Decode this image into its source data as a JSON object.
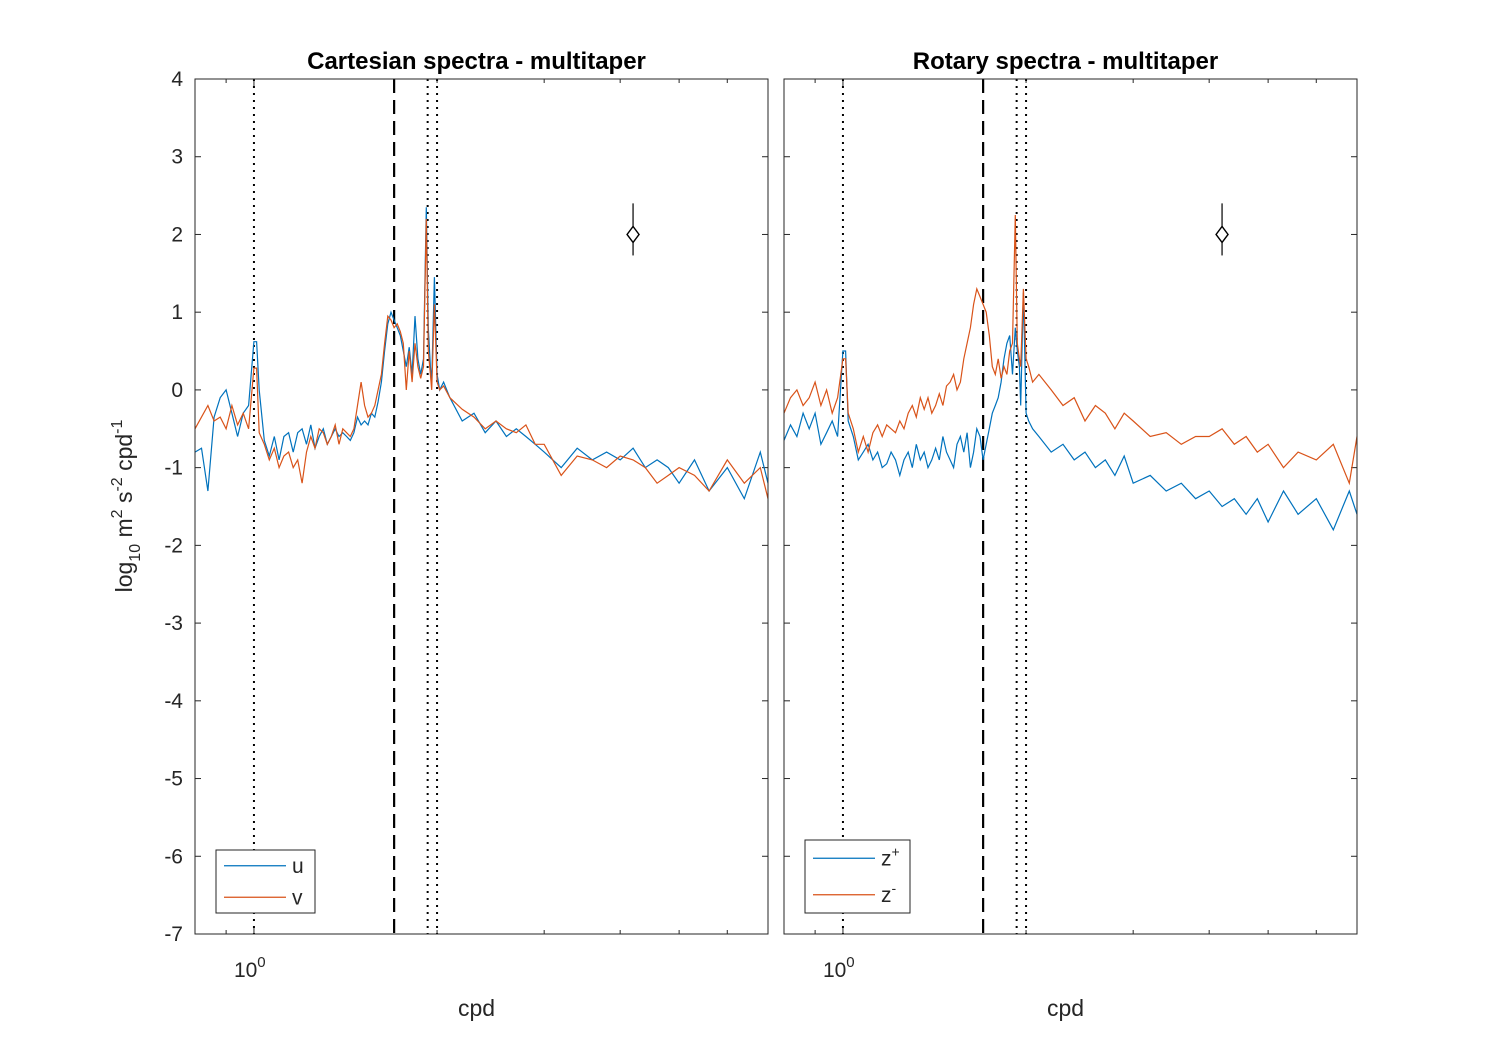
{
  "chart_data": [
    {
      "type": "line",
      "title": "Cartesian spectra - multitaper",
      "xlabel": "cpd",
      "ylabel": {
        "base": "log",
        "sub1": "10",
        "mid1": " m",
        "sup1": "2",
        "mid2": " s",
        "sup2": "-2",
        "mid3": " cpd",
        "sup3": "-1"
      },
      "xscale": "log",
      "xlim": [
        0.8,
        7.0
      ],
      "ylim": [
        -7,
        4
      ],
      "yticks": [
        "4",
        "3",
        "2",
        "1",
        "0",
        "-1",
        "-2",
        "-3",
        "-4",
        "-5",
        "-6",
        "-7"
      ],
      "xtick_label": {
        "base": "10",
        "exp": "0"
      },
      "legend": {
        "placement": "bottom-left"
      },
      "reference_lines": [
        {
          "x": 1.0,
          "style": "dotted"
        },
        {
          "x": 1.7,
          "style": "dashed"
        },
        {
          "x": 1.93,
          "style": "dotted"
        },
        {
          "x": 2.0,
          "style": "dotted"
        }
      ],
      "error_bar": {
        "x": 4.2,
        "y": 2.0,
        "low": 1.73,
        "high": 2.4
      },
      "series": [
        {
          "name": "u",
          "color": "#0072BD",
          "x": [
            0.8,
            0.82,
            0.84,
            0.86,
            0.88,
            0.9,
            0.92,
            0.94,
            0.96,
            0.98,
            1.0,
            1.01,
            1.02,
            1.04,
            1.06,
            1.08,
            1.1,
            1.12,
            1.14,
            1.16,
            1.18,
            1.2,
            1.22,
            1.24,
            1.26,
            1.28,
            1.3,
            1.32,
            1.34,
            1.36,
            1.38,
            1.4,
            1.42,
            1.44,
            1.46,
            1.48,
            1.5,
            1.52,
            1.54,
            1.56,
            1.58,
            1.6,
            1.62,
            1.64,
            1.66,
            1.68,
            1.7,
            1.72,
            1.74,
            1.76,
            1.78,
            1.8,
            1.82,
            1.84,
            1.86,
            1.88,
            1.9,
            1.92,
            1.935,
            1.95,
            1.96,
            1.98,
            2.0,
            2.02,
            2.05,
            2.1,
            2.2,
            2.3,
            2.4,
            2.5,
            2.6,
            2.7,
            2.8,
            2.9,
            3.0,
            3.2,
            3.4,
            3.6,
            3.8,
            4.0,
            4.2,
            4.4,
            4.6,
            4.8,
            5.0,
            5.3,
            5.6,
            6.0,
            6.4,
            6.8,
            7.0
          ],
          "y": [
            -0.8,
            -0.75,
            -1.3,
            -0.35,
            -0.1,
            0.0,
            -0.3,
            -0.6,
            -0.3,
            -0.2,
            0.62,
            0.62,
            0.0,
            -0.65,
            -0.85,
            -0.6,
            -0.9,
            -0.6,
            -0.55,
            -0.8,
            -0.55,
            -0.5,
            -0.7,
            -0.45,
            -0.75,
            -0.6,
            -0.5,
            -0.7,
            -0.6,
            -0.5,
            -0.6,
            -0.55,
            -0.6,
            -0.65,
            -0.55,
            -0.35,
            -0.45,
            -0.4,
            -0.45,
            -0.3,
            -0.35,
            -0.15,
            0.1,
            0.5,
            0.85,
            1.0,
            0.9,
            0.8,
            0.7,
            0.5,
            0.3,
            0.55,
            0.2,
            0.95,
            0.4,
            0.2,
            0.4,
            2.35,
            0.8,
            0.3,
            0.1,
            1.45,
            0.2,
            0.0,
            0.1,
            -0.1,
            -0.4,
            -0.3,
            -0.55,
            -0.4,
            -0.6,
            -0.5,
            -0.6,
            -0.7,
            -0.8,
            -1.0,
            -0.75,
            -0.9,
            -0.8,
            -0.9,
            -0.75,
            -1.0,
            -0.9,
            -1.0,
            -1.2,
            -0.9,
            -1.3,
            -1.0,
            -1.4,
            -0.8,
            -1.2
          ]
        },
        {
          "name": "v",
          "color": "#D95319",
          "x": [
            0.8,
            0.82,
            0.84,
            0.86,
            0.88,
            0.9,
            0.92,
            0.94,
            0.96,
            0.98,
            1.0,
            1.01,
            1.02,
            1.04,
            1.06,
            1.08,
            1.1,
            1.12,
            1.14,
            1.16,
            1.18,
            1.2,
            1.22,
            1.24,
            1.26,
            1.28,
            1.3,
            1.32,
            1.34,
            1.36,
            1.38,
            1.4,
            1.42,
            1.44,
            1.46,
            1.48,
            1.5,
            1.52,
            1.54,
            1.56,
            1.58,
            1.6,
            1.62,
            1.64,
            1.66,
            1.68,
            1.7,
            1.72,
            1.74,
            1.76,
            1.78,
            1.8,
            1.82,
            1.84,
            1.86,
            1.88,
            1.9,
            1.92,
            1.935,
            1.95,
            1.96,
            1.98,
            2.0,
            2.02,
            2.05,
            2.1,
            2.2,
            2.3,
            2.4,
            2.5,
            2.6,
            2.7,
            2.8,
            2.9,
            3.0,
            3.2,
            3.4,
            3.6,
            3.8,
            4.0,
            4.2,
            4.4,
            4.6,
            4.8,
            5.0,
            5.3,
            5.6,
            6.0,
            6.4,
            6.8,
            7.0
          ],
          "y": [
            -0.5,
            -0.35,
            -0.2,
            -0.4,
            -0.35,
            -0.5,
            -0.2,
            -0.45,
            -0.3,
            -0.5,
            0.28,
            0.28,
            -0.55,
            -0.7,
            -0.9,
            -0.75,
            -1.0,
            -0.85,
            -0.8,
            -1.0,
            -0.9,
            -1.2,
            -0.8,
            -0.6,
            -0.75,
            -0.5,
            -0.55,
            -0.7,
            -0.6,
            -0.45,
            -0.7,
            -0.5,
            -0.55,
            -0.6,
            -0.5,
            -0.2,
            0.1,
            -0.2,
            -0.35,
            -0.3,
            -0.2,
            0.0,
            0.2,
            0.6,
            0.95,
            0.9,
            0.8,
            0.85,
            0.75,
            0.6,
            0.0,
            0.5,
            0.1,
            0.6,
            0.3,
            0.15,
            0.3,
            2.2,
            0.5,
            0.2,
            0.0,
            1.1,
            0.1,
            0.0,
            0.05,
            -0.1,
            -0.25,
            -0.35,
            -0.5,
            -0.4,
            -0.5,
            -0.55,
            -0.45,
            -0.7,
            -0.7,
            -1.1,
            -0.85,
            -0.9,
            -1.0,
            -0.85,
            -0.9,
            -1.0,
            -1.2,
            -1.1,
            -1.0,
            -1.1,
            -1.3,
            -0.9,
            -1.2,
            -1.0,
            -1.4
          ]
        }
      ]
    },
    {
      "type": "line",
      "title": "Rotary spectra - multitaper",
      "xlabel": "cpd",
      "xscale": "log",
      "xlim": [
        0.8,
        7.0
      ],
      "ylim": [
        -7,
        4
      ],
      "xtick_label": {
        "base": "10",
        "exp": "0"
      },
      "legend": {
        "placement": "bottom-left"
      },
      "reference_lines": [
        {
          "x": 1.0,
          "style": "dotted"
        },
        {
          "x": 1.7,
          "style": "dashed"
        },
        {
          "x": 1.93,
          "style": "dotted"
        },
        {
          "x": 2.0,
          "style": "dotted"
        }
      ],
      "error_bar": {
        "x": 4.2,
        "y": 2.0,
        "low": 1.73,
        "high": 2.4
      },
      "series": [
        {
          "name": {
            "base": "z",
            "sup": "+"
          },
          "color": "#0072BD",
          "x": [
            0.8,
            0.82,
            0.84,
            0.86,
            0.88,
            0.9,
            0.92,
            0.94,
            0.96,
            0.98,
            1.0,
            1.01,
            1.02,
            1.04,
            1.06,
            1.08,
            1.1,
            1.12,
            1.14,
            1.16,
            1.18,
            1.2,
            1.22,
            1.24,
            1.26,
            1.28,
            1.3,
            1.32,
            1.34,
            1.36,
            1.38,
            1.4,
            1.42,
            1.44,
            1.46,
            1.48,
            1.5,
            1.52,
            1.54,
            1.56,
            1.58,
            1.6,
            1.62,
            1.64,
            1.66,
            1.68,
            1.7,
            1.72,
            1.74,
            1.76,
            1.78,
            1.8,
            1.82,
            1.84,
            1.86,
            1.88,
            1.9,
            1.92,
            1.935,
            1.95,
            1.96,
            1.98,
            2.0,
            2.02,
            2.05,
            2.1,
            2.2,
            2.3,
            2.4,
            2.5,
            2.6,
            2.7,
            2.8,
            2.9,
            3.0,
            3.2,
            3.4,
            3.6,
            3.8,
            4.0,
            4.2,
            4.4,
            4.6,
            4.8,
            5.0,
            5.3,
            5.6,
            6.0,
            6.4,
            6.8,
            7.0
          ],
          "y": [
            -0.65,
            -0.45,
            -0.6,
            -0.3,
            -0.5,
            -0.3,
            -0.7,
            -0.55,
            -0.4,
            -0.6,
            0.5,
            0.5,
            -0.4,
            -0.6,
            -0.9,
            -0.8,
            -0.7,
            -0.9,
            -0.8,
            -1.0,
            -0.95,
            -0.8,
            -0.9,
            -1.1,
            -0.9,
            -0.8,
            -1.0,
            -0.7,
            -0.9,
            -0.8,
            -1.0,
            -0.9,
            -0.75,
            -0.9,
            -0.6,
            -0.8,
            -0.9,
            -1.0,
            -0.7,
            -0.6,
            -0.8,
            -0.55,
            -1.0,
            -0.8,
            -0.5,
            -0.6,
            -0.9,
            -0.7,
            -0.5,
            -0.3,
            -0.2,
            -0.1,
            0.1,
            0.4,
            0.6,
            0.7,
            0.2,
            0.8,
            0.5,
            0.3,
            -0.2,
            1.25,
            -0.3,
            -0.4,
            -0.5,
            -0.6,
            -0.8,
            -0.7,
            -0.9,
            -0.8,
            -1.0,
            -0.9,
            -1.1,
            -0.85,
            -1.2,
            -1.1,
            -1.3,
            -1.2,
            -1.4,
            -1.3,
            -1.5,
            -1.4,
            -1.6,
            -1.4,
            -1.7,
            -1.3,
            -1.6,
            -1.4,
            -1.8,
            -1.3,
            -1.6
          ]
        },
        {
          "name": {
            "base": "z",
            "sup": "-"
          },
          "color": "#D95319",
          "x": [
            0.8,
            0.82,
            0.84,
            0.86,
            0.88,
            0.9,
            0.92,
            0.94,
            0.96,
            0.98,
            1.0,
            1.01,
            1.02,
            1.04,
            1.06,
            1.08,
            1.1,
            1.12,
            1.14,
            1.16,
            1.18,
            1.2,
            1.22,
            1.24,
            1.26,
            1.28,
            1.3,
            1.32,
            1.34,
            1.36,
            1.38,
            1.4,
            1.42,
            1.44,
            1.46,
            1.48,
            1.5,
            1.52,
            1.54,
            1.56,
            1.58,
            1.6,
            1.62,
            1.64,
            1.66,
            1.68,
            1.7,
            1.72,
            1.74,
            1.76,
            1.78,
            1.8,
            1.82,
            1.84,
            1.86,
            1.88,
            1.9,
            1.92,
            1.935,
            1.95,
            1.96,
            1.98,
            2.0,
            2.02,
            2.05,
            2.1,
            2.2,
            2.3,
            2.4,
            2.5,
            2.6,
            2.7,
            2.8,
            2.9,
            3.0,
            3.2,
            3.4,
            3.6,
            3.8,
            4.0,
            4.2,
            4.4,
            4.6,
            4.8,
            5.0,
            5.3,
            5.6,
            6.0,
            6.4,
            6.8,
            7.0
          ],
          "y": [
            -0.3,
            -0.1,
            0.0,
            -0.2,
            -0.1,
            0.1,
            -0.2,
            0.0,
            -0.3,
            -0.1,
            0.4,
            0.4,
            -0.3,
            -0.5,
            -0.8,
            -0.6,
            -0.8,
            -0.55,
            -0.45,
            -0.6,
            -0.45,
            -0.5,
            -0.55,
            -0.4,
            -0.5,
            -0.3,
            -0.2,
            -0.35,
            -0.1,
            -0.25,
            -0.1,
            -0.3,
            -0.2,
            -0.05,
            -0.2,
            0.05,
            0.1,
            0.2,
            0.0,
            0.1,
            0.4,
            0.6,
            0.8,
            1.1,
            1.3,
            1.2,
            1.1,
            1.0,
            0.7,
            0.3,
            0.2,
            0.4,
            0.15,
            0.3,
            0.2,
            0.5,
            0.6,
            2.25,
            0.6,
            0.4,
            0.3,
            1.3,
            0.4,
            0.3,
            0.1,
            0.2,
            0.0,
            -0.2,
            -0.1,
            -0.4,
            -0.2,
            -0.3,
            -0.5,
            -0.3,
            -0.4,
            -0.6,
            -0.55,
            -0.7,
            -0.6,
            -0.6,
            -0.5,
            -0.7,
            -0.6,
            -0.8,
            -0.7,
            -1.0,
            -0.8,
            -0.9,
            -0.7,
            -1.2,
            -0.6
          ]
        }
      ]
    }
  ]
}
